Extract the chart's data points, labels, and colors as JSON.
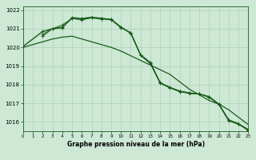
{
  "smooth_x": [
    0,
    2,
    3,
    4,
    5,
    6,
    7,
    8,
    9,
    10,
    11,
    12,
    13,
    14,
    15,
    16,
    17,
    18,
    19,
    20,
    21,
    22,
    23
  ],
  "smooth_y": [
    1020.0,
    1020.3,
    1020.45,
    1020.55,
    1020.6,
    1020.45,
    1020.3,
    1020.15,
    1020.0,
    1019.8,
    1019.55,
    1019.3,
    1019.05,
    1018.8,
    1018.55,
    1018.15,
    1017.75,
    1017.45,
    1017.15,
    1016.95,
    1016.65,
    1016.25,
    1015.85
  ],
  "main_x": [
    0,
    2,
    3,
    4,
    5,
    6,
    7,
    8,
    9,
    10,
    11,
    12,
    13,
    14,
    15,
    16,
    17,
    18,
    19,
    20,
    21,
    22,
    23
  ],
  "main_y": [
    1020.05,
    1020.85,
    1021.0,
    1021.05,
    1021.6,
    1021.55,
    1021.62,
    1021.56,
    1021.5,
    1021.08,
    1020.78,
    1019.6,
    1019.18,
    1018.1,
    1017.85,
    1017.65,
    1017.55,
    1017.5,
    1017.35,
    1016.95,
    1016.1,
    1015.9,
    1015.55
  ],
  "upper1_x": [
    2,
    3,
    4,
    5,
    6,
    7,
    8,
    9,
    10,
    11,
    12,
    13,
    14,
    15,
    16,
    17,
    18,
    19,
    20,
    21,
    22,
    23
  ],
  "upper1_y": [
    1020.7,
    1021.0,
    1021.1,
    1021.55,
    1021.48,
    1021.58,
    1021.52,
    1021.48,
    1021.05,
    1020.77,
    1019.57,
    1019.12,
    1018.07,
    1017.82,
    1017.62,
    1017.52,
    1017.5,
    1017.32,
    1016.92,
    1016.05,
    1015.87,
    1015.55
  ],
  "upper2_x": [
    2,
    3,
    4,
    5,
    6,
    7,
    8,
    9,
    10,
    11,
    12,
    13,
    14,
    15,
    16,
    17,
    18,
    19,
    20,
    21,
    22,
    23
  ],
  "upper2_y": [
    1020.6,
    1021.0,
    1021.2,
    1021.55,
    1021.5,
    1021.6,
    1021.55,
    1021.5,
    1021.1,
    1020.75,
    1019.6,
    1019.15,
    1018.1,
    1017.85,
    1017.65,
    1017.55,
    1017.5,
    1017.35,
    1016.95,
    1016.1,
    1015.9,
    1015.6
  ],
  "ylim": [
    1015.5,
    1022.2
  ],
  "yticks": [
    1016,
    1017,
    1018,
    1019,
    1020,
    1021,
    1022
  ],
  "xlim": [
    0,
    23
  ],
  "xticks": [
    0,
    1,
    2,
    3,
    4,
    5,
    6,
    7,
    8,
    9,
    10,
    11,
    12,
    13,
    14,
    15,
    16,
    17,
    18,
    19,
    20,
    21,
    22,
    23
  ],
  "bg_color": "#cde8d5",
  "grid_color": "#aecfb8",
  "line_color": "#1a5c1a",
  "xlabel": "Graphe pression niveau de la mer (hPa)"
}
